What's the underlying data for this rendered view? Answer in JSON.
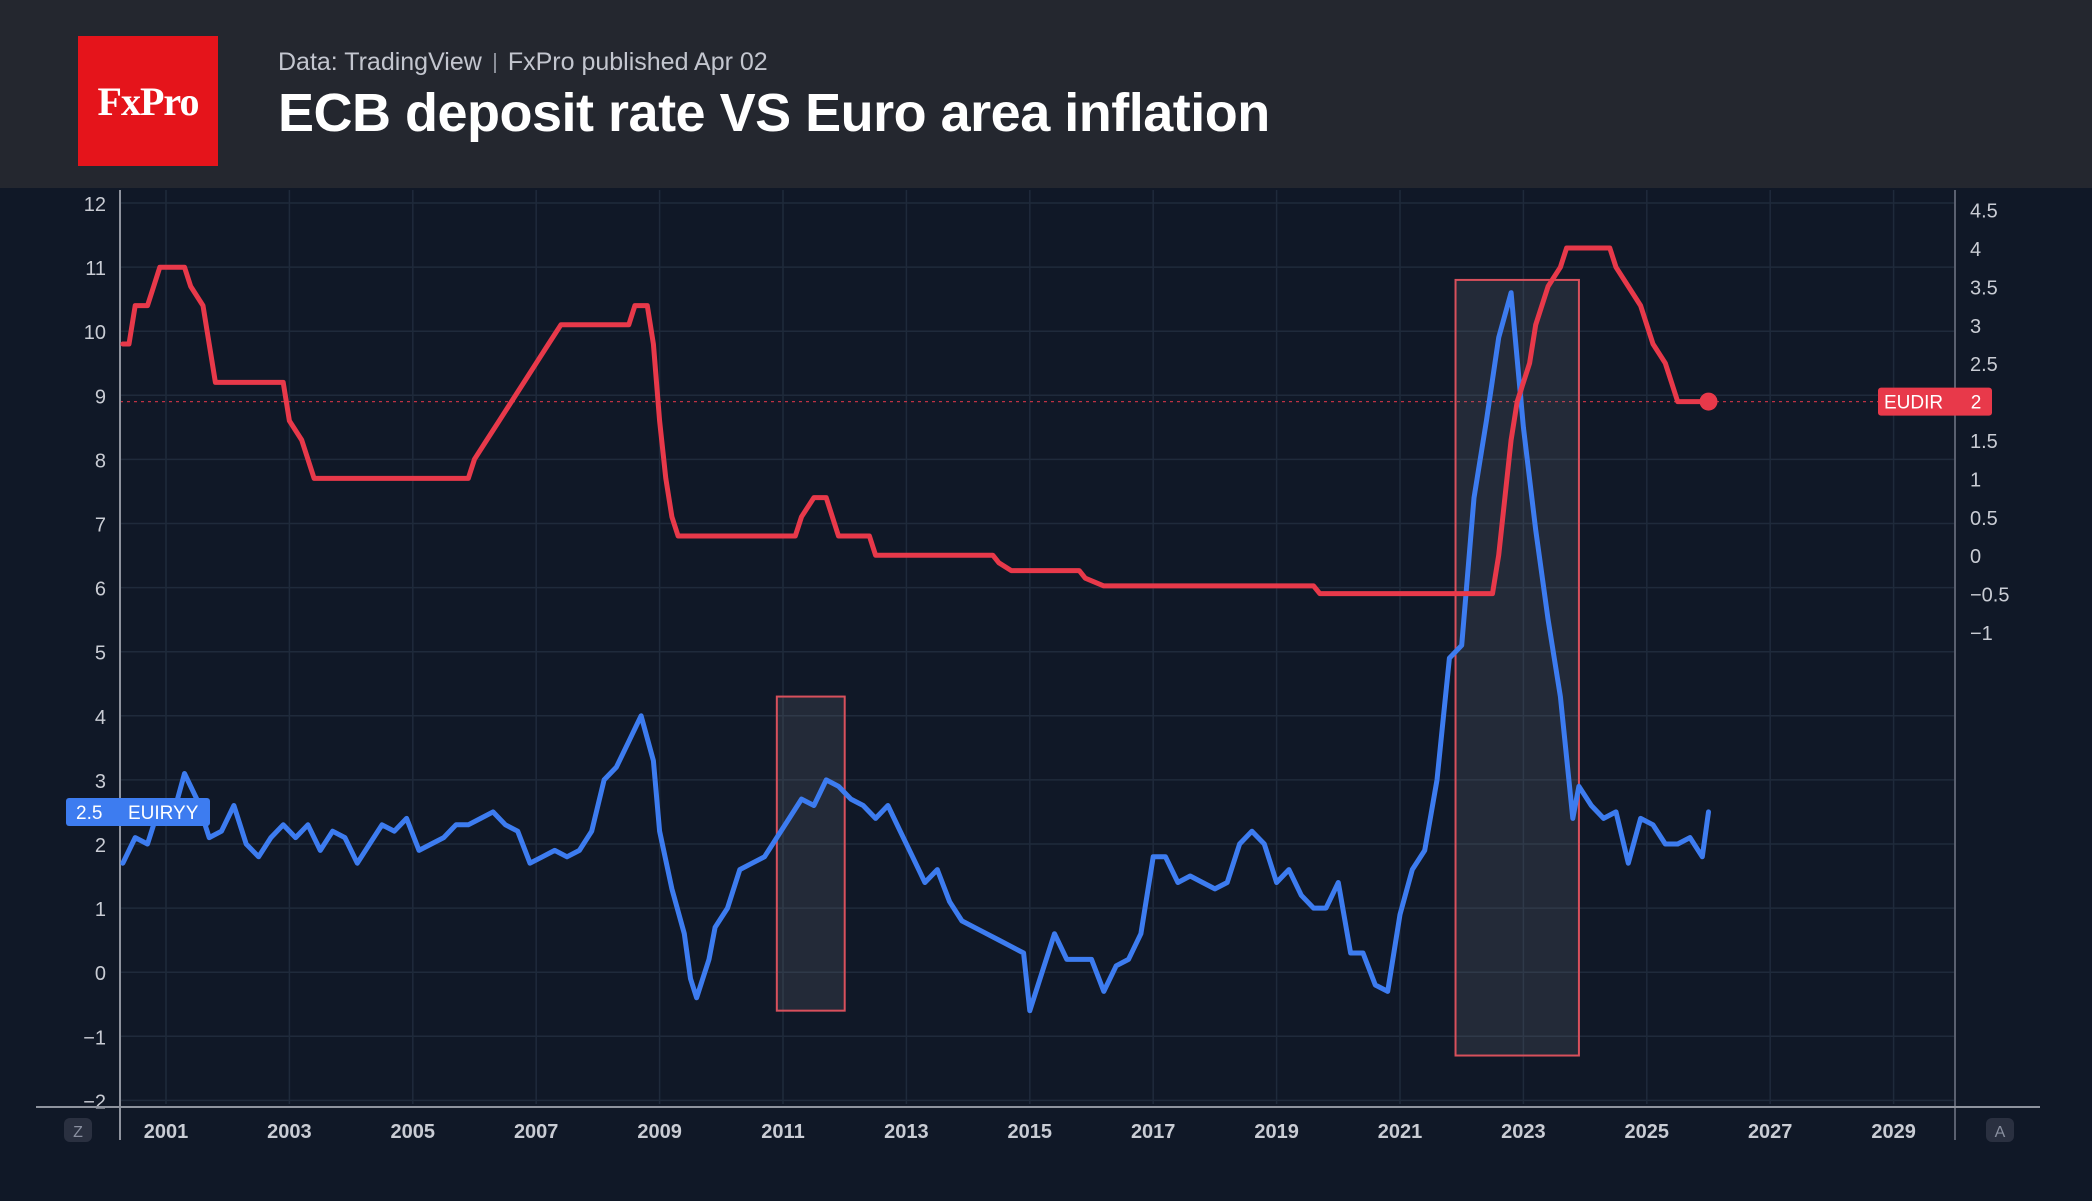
{
  "header": {
    "logo_text": "FxPro",
    "source_left": "Data: TradingView",
    "source_right": "FxPro published Apr 02",
    "title": "ECB deposit rate VS Euro area inflation"
  },
  "axis_corner": {
    "left": "Z",
    "right": "A"
  },
  "colors": {
    "background": "#101827",
    "header_bg": "#24272f",
    "brand_red": "#e5141b",
    "inflation_series": "#3d7cf0",
    "deposit_series": "#e8394a",
    "grid": "#1f2a3b",
    "axis_text": "#c9ccd4"
  },
  "chart_data": {
    "type": "line",
    "xlim": [
      2000.3,
      2030
    ],
    "x_ticks": [
      "2001",
      "2003",
      "2005",
      "2007",
      "2009",
      "2011",
      "2013",
      "2015",
      "2017",
      "2019",
      "2021",
      "2023",
      "2025",
      "2027",
      "2029"
    ],
    "y_left": {
      "lim": [
        -2,
        12
      ],
      "ticks": [
        "12",
        "11",
        "10",
        "9",
        "8",
        "7",
        "6",
        "5",
        "4",
        "3",
        "2",
        "1",
        "0",
        "−1",
        "−2"
      ]
    },
    "y_right": {
      "lim": [
        -1,
        4.5
      ],
      "ticks": [
        "4.5",
        "4",
        "3.5",
        "3",
        "2.5",
        "2",
        "1.5",
        "1",
        "0.5",
        "0",
        "−0.5",
        "−1"
      ]
    },
    "series": [
      {
        "name": "EUIRYY",
        "axis": "left",
        "last_value": "2.5",
        "points": [
          [
            2000.3,
            1.7
          ],
          [
            2000.5,
            2.1
          ],
          [
            2000.7,
            2.0
          ],
          [
            2000.9,
            2.6
          ],
          [
            2001.1,
            2.4
          ],
          [
            2001.3,
            3.1
          ],
          [
            2001.5,
            2.7
          ],
          [
            2001.7,
            2.1
          ],
          [
            2001.9,
            2.2
          ],
          [
            2002.1,
            2.6
          ],
          [
            2002.3,
            2.0
          ],
          [
            2002.5,
            1.8
          ],
          [
            2002.7,
            2.1
          ],
          [
            2002.9,
            2.3
          ],
          [
            2003.1,
            2.1
          ],
          [
            2003.3,
            2.3
          ],
          [
            2003.5,
            1.9
          ],
          [
            2003.7,
            2.2
          ],
          [
            2003.9,
            2.1
          ],
          [
            2004.1,
            1.7
          ],
          [
            2004.3,
            2.0
          ],
          [
            2004.5,
            2.3
          ],
          [
            2004.7,
            2.2
          ],
          [
            2004.9,
            2.4
          ],
          [
            2005.1,
            1.9
          ],
          [
            2005.3,
            2.0
          ],
          [
            2005.5,
            2.1
          ],
          [
            2005.7,
            2.3
          ],
          [
            2005.9,
            2.3
          ],
          [
            2006.1,
            2.4
          ],
          [
            2006.3,
            2.5
          ],
          [
            2006.5,
            2.3
          ],
          [
            2006.7,
            2.2
          ],
          [
            2006.9,
            1.7
          ],
          [
            2007.1,
            1.8
          ],
          [
            2007.3,
            1.9
          ],
          [
            2007.5,
            1.8
          ],
          [
            2007.7,
            1.9
          ],
          [
            2007.9,
            2.2
          ],
          [
            2008.1,
            3.0
          ],
          [
            2008.3,
            3.2
          ],
          [
            2008.5,
            3.6
          ],
          [
            2008.7,
            4.0
          ],
          [
            2008.9,
            3.3
          ],
          [
            2009.0,
            2.2
          ],
          [
            2009.2,
            1.3
          ],
          [
            2009.4,
            0.6
          ],
          [
            2009.5,
            -0.1
          ],
          [
            2009.6,
            -0.4
          ],
          [
            2009.8,
            0.2
          ],
          [
            2009.9,
            0.7
          ],
          [
            2010.1,
            1.0
          ],
          [
            2010.3,
            1.6
          ],
          [
            2010.5,
            1.7
          ],
          [
            2010.7,
            1.8
          ],
          [
            2010.9,
            2.1
          ],
          [
            2011.1,
            2.4
          ],
          [
            2011.3,
            2.7
          ],
          [
            2011.5,
            2.6
          ],
          [
            2011.7,
            3.0
          ],
          [
            2011.9,
            2.9
          ],
          [
            2012.1,
            2.7
          ],
          [
            2012.3,
            2.6
          ],
          [
            2012.5,
            2.4
          ],
          [
            2012.7,
            2.6
          ],
          [
            2012.9,
            2.2
          ],
          [
            2013.1,
            1.8
          ],
          [
            2013.3,
            1.4
          ],
          [
            2013.5,
            1.6
          ],
          [
            2013.7,
            1.1
          ],
          [
            2013.9,
            0.8
          ],
          [
            2014.1,
            0.7
          ],
          [
            2014.3,
            0.6
          ],
          [
            2014.5,
            0.5
          ],
          [
            2014.7,
            0.4
          ],
          [
            2014.9,
            0.3
          ],
          [
            2015.0,
            -0.6
          ],
          [
            2015.2,
            0.0
          ],
          [
            2015.4,
            0.6
          ],
          [
            2015.6,
            0.2
          ],
          [
            2015.8,
            0.2
          ],
          [
            2016.0,
            0.2
          ],
          [
            2016.2,
            -0.3
          ],
          [
            2016.4,
            0.1
          ],
          [
            2016.6,
            0.2
          ],
          [
            2016.8,
            0.6
          ],
          [
            2017.0,
            1.8
          ],
          [
            2017.2,
            1.8
          ],
          [
            2017.4,
            1.4
          ],
          [
            2017.6,
            1.5
          ],
          [
            2017.8,
            1.4
          ],
          [
            2018.0,
            1.3
          ],
          [
            2018.2,
            1.4
          ],
          [
            2018.4,
            2.0
          ],
          [
            2018.6,
            2.2
          ],
          [
            2018.8,
            2.0
          ],
          [
            2019.0,
            1.4
          ],
          [
            2019.2,
            1.6
          ],
          [
            2019.4,
            1.2
          ],
          [
            2019.6,
            1.0
          ],
          [
            2019.8,
            1.0
          ],
          [
            2020.0,
            1.4
          ],
          [
            2020.2,
            0.3
          ],
          [
            2020.4,
            0.3
          ],
          [
            2020.6,
            -0.2
          ],
          [
            2020.8,
            -0.3
          ],
          [
            2021.0,
            0.9
          ],
          [
            2021.2,
            1.6
          ],
          [
            2021.4,
            1.9
          ],
          [
            2021.6,
            3.0
          ],
          [
            2021.8,
            4.9
          ],
          [
            2022.0,
            5.1
          ],
          [
            2022.2,
            7.4
          ],
          [
            2022.4,
            8.6
          ],
          [
            2022.6,
            9.9
          ],
          [
            2022.8,
            10.6
          ],
          [
            2023.0,
            8.5
          ],
          [
            2023.2,
            6.9
          ],
          [
            2023.4,
            5.5
          ],
          [
            2023.6,
            4.3
          ],
          [
            2023.8,
            2.4
          ],
          [
            2023.9,
            2.9
          ],
          [
            2024.1,
            2.6
          ],
          [
            2024.3,
            2.4
          ],
          [
            2024.5,
            2.5
          ],
          [
            2024.7,
            1.7
          ],
          [
            2024.9,
            2.4
          ],
          [
            2025.1,
            2.3
          ],
          [
            2025.3,
            2.0
          ],
          [
            2025.5,
            2.0
          ],
          [
            2025.7,
            2.1
          ],
          [
            2025.9,
            1.8
          ],
          [
            2026.0,
            2.5
          ]
        ]
      },
      {
        "name": "EUDIR",
        "axis": "right",
        "last_value": "2",
        "points": [
          [
            2000.3,
            2.75
          ],
          [
            2000.4,
            2.75
          ],
          [
            2000.5,
            3.25
          ],
          [
            2000.7,
            3.25
          ],
          [
            2000.8,
            3.5
          ],
          [
            2000.9,
            3.75
          ],
          [
            2001.3,
            3.75
          ],
          [
            2001.4,
            3.5
          ],
          [
            2001.6,
            3.25
          ],
          [
            2001.7,
            2.75
          ],
          [
            2001.8,
            2.25
          ],
          [
            2002.9,
            2.25
          ],
          [
            2003.0,
            1.75
          ],
          [
            2003.2,
            1.5
          ],
          [
            2003.4,
            1.0
          ],
          [
            2005.9,
            1.0
          ],
          [
            2006.0,
            1.25
          ],
          [
            2006.2,
            1.5
          ],
          [
            2006.4,
            1.75
          ],
          [
            2006.6,
            2.0
          ],
          [
            2006.8,
            2.25
          ],
          [
            2007.0,
            2.5
          ],
          [
            2007.2,
            2.75
          ],
          [
            2007.4,
            3.0
          ],
          [
            2008.5,
            3.0
          ],
          [
            2008.6,
            3.25
          ],
          [
            2008.8,
            3.25
          ],
          [
            2008.9,
            2.75
          ],
          [
            2009.0,
            1.75
          ],
          [
            2009.1,
            1.0
          ],
          [
            2009.2,
            0.5
          ],
          [
            2009.3,
            0.25
          ],
          [
            2011.2,
            0.25
          ],
          [
            2011.3,
            0.5
          ],
          [
            2011.5,
            0.75
          ],
          [
            2011.7,
            0.75
          ],
          [
            2011.9,
            0.25
          ],
          [
            2012.4,
            0.25
          ],
          [
            2012.5,
            0.0
          ],
          [
            2014.4,
            0.0
          ],
          [
            2014.5,
            -0.1
          ],
          [
            2014.7,
            -0.2
          ],
          [
            2015.8,
            -0.2
          ],
          [
            2015.9,
            -0.3
          ],
          [
            2016.2,
            -0.4
          ],
          [
            2019.6,
            -0.4
          ],
          [
            2019.7,
            -0.5
          ],
          [
            2022.5,
            -0.5
          ],
          [
            2022.6,
            0.0
          ],
          [
            2022.7,
            0.75
          ],
          [
            2022.8,
            1.5
          ],
          [
            2022.9,
            2.0
          ],
          [
            2023.1,
            2.5
          ],
          [
            2023.2,
            3.0
          ],
          [
            2023.4,
            3.5
          ],
          [
            2023.6,
            3.75
          ],
          [
            2023.7,
            4.0
          ],
          [
            2024.4,
            4.0
          ],
          [
            2024.5,
            3.75
          ],
          [
            2024.7,
            3.5
          ],
          [
            2024.9,
            3.25
          ],
          [
            2025.1,
            2.75
          ],
          [
            2025.3,
            2.5
          ],
          [
            2025.4,
            2.25
          ],
          [
            2025.5,
            2.0
          ],
          [
            2026.0,
            2.0
          ]
        ]
      }
    ],
    "highlight_ranges": [
      {
        "x": [
          2010.9,
          2012.0
        ],
        "y_left": [
          -0.6,
          4.3
        ]
      },
      {
        "x": [
          2021.9,
          2023.9
        ],
        "y_left": [
          -1.3,
          10.8
        ]
      }
    ],
    "reference_line": {
      "axis": "right",
      "value": 2
    },
    "grid": true,
    "legend": "none"
  }
}
